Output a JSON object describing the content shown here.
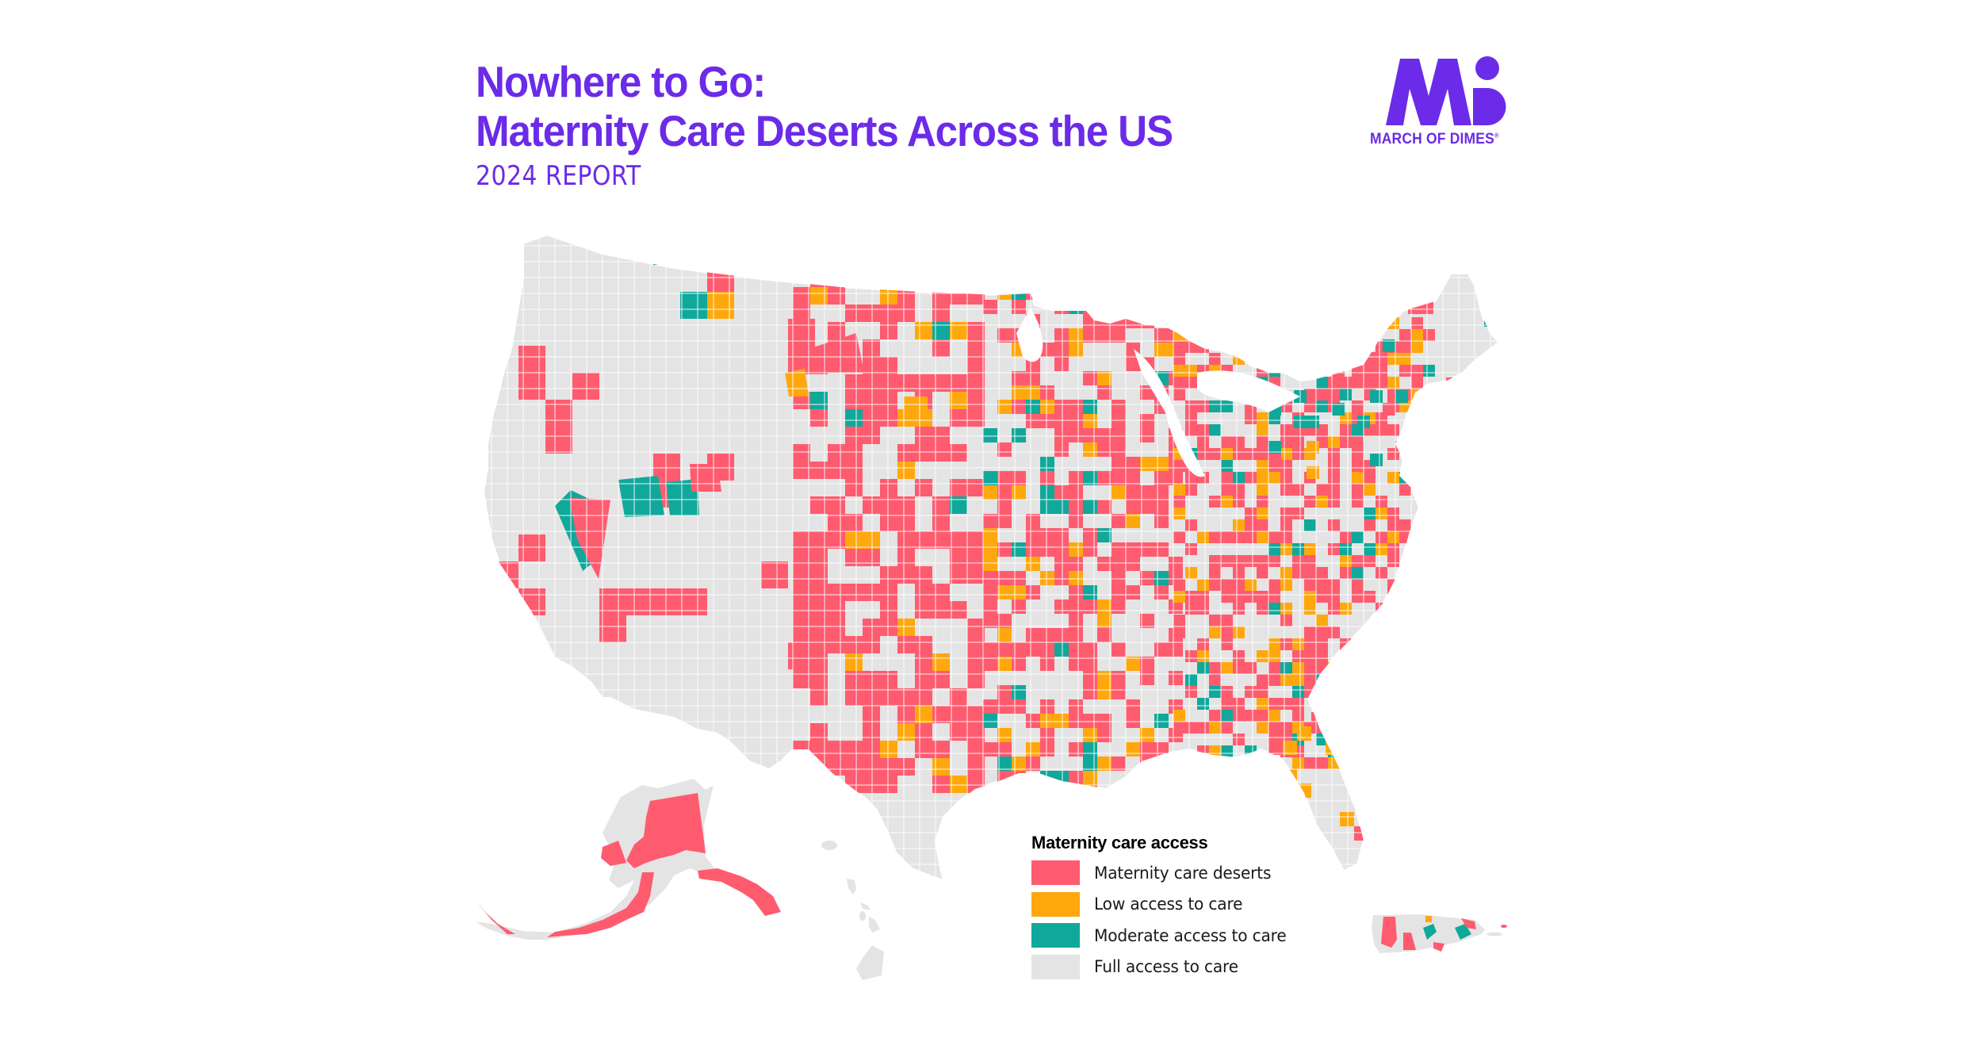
{
  "header": {
    "title_line1": "Nowhere to Go:",
    "title_line2": "Maternity Care Deserts Across the US",
    "subtitle": "2024 REPORT"
  },
  "logo": {
    "text": "MARCH OF DIMES",
    "mark": "registered-mark",
    "color": "#6B2BE8"
  },
  "colors": {
    "title": "#6B2BE8",
    "desert": "#FF5B6F",
    "low": "#FFA80D",
    "moderate": "#10A89B",
    "full": "#E4E4E4",
    "border": "#FFFFFF"
  },
  "legend": {
    "title": "Maternity care access",
    "items": [
      {
        "label": "Maternity care deserts",
        "color": "#FF5B6F",
        "key": "desert"
      },
      {
        "label": "Low access to care",
        "color": "#FFA80D",
        "key": "low"
      },
      {
        "label": "Moderate access to care",
        "color": "#10A89B",
        "key": "moderate"
      },
      {
        "label": "Full access to care",
        "color": "#E4E4E4",
        "key": "full"
      }
    ]
  },
  "map": {
    "type": "county-choropleth",
    "regions": [
      "Contiguous US",
      "Alaska",
      "Hawaii",
      "Puerto Rico"
    ],
    "category_field": "maternity_care_access",
    "categories": [
      "Maternity care deserts",
      "Low access to care",
      "Moderate access to care",
      "Full access to care"
    ]
  }
}
